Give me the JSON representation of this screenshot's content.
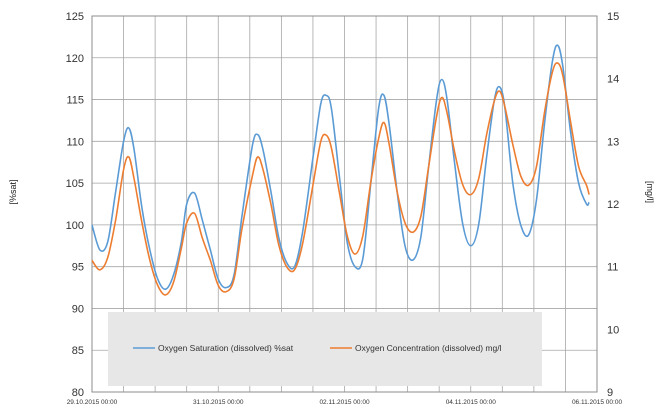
{
  "chart_data": {
    "type": "line",
    "ylabel_left": "[%sat]",
    "ylabel_right": "[mg/l]",
    "ylim_left": [
      80,
      125
    ],
    "ylim_right": [
      9,
      15
    ],
    "yticks_left": [
      "80",
      "85",
      "90",
      "95",
      "100",
      "105",
      "110",
      "115",
      "120",
      "125"
    ],
    "yticks_right": [
      "9",
      "10",
      "11",
      "12",
      "13",
      "14",
      "15"
    ],
    "x_range_hours": [
      0,
      192
    ],
    "x_ticks": [
      {
        "hours": 0,
        "label": "29.10.2015 00:00"
      },
      {
        "hours": 48,
        "label": "31.10.2015 00:00"
      },
      {
        "hours": 96,
        "label": "02.11.2015 00:00"
      },
      {
        "hours": 144,
        "label": "04.11.2015 00:00"
      },
      {
        "hours": 192,
        "label": "06.11.2015 00:00"
      }
    ],
    "grid": true,
    "legend_position": "bottom-center",
    "series": [
      {
        "name": "Oxygen Saturation (dissolved) %sat",
        "axis": "left",
        "color": "#5b9bd5",
        "points": [
          [
            0,
            100
          ],
          [
            3,
            97
          ],
          [
            6,
            98
          ],
          [
            9,
            104
          ],
          [
            12,
            110
          ],
          [
            14,
            111.6
          ],
          [
            16,
            109
          ],
          [
            19,
            102
          ],
          [
            22,
            97
          ],
          [
            25,
            93.5
          ],
          [
            28,
            92.3
          ],
          [
            31,
            94
          ],
          [
            34,
            98
          ],
          [
            36,
            102.5
          ],
          [
            39,
            103.8
          ],
          [
            42,
            100.5
          ],
          [
            45,
            97
          ],
          [
            48,
            93.5
          ],
          [
            51,
            92.5
          ],
          [
            54,
            94
          ],
          [
            57,
            101
          ],
          [
            61,
            109.5
          ],
          [
            63,
            110.8
          ],
          [
            65,
            109
          ],
          [
            68,
            104
          ],
          [
            71,
            98.5
          ],
          [
            74,
            95.5
          ],
          [
            77,
            95
          ],
          [
            80,
            99
          ],
          [
            84,
            108
          ],
          [
            87,
            114.5
          ],
          [
            89,
            115.5
          ],
          [
            91,
            114
          ],
          [
            94,
            106
          ],
          [
            97,
            98
          ],
          [
            100,
            95
          ],
          [
            103,
            96
          ],
          [
            106,
            105
          ],
          [
            109,
            114
          ],
          [
            111,
            115.5
          ],
          [
            113,
            112
          ],
          [
            116,
            104
          ],
          [
            119,
            97.5
          ],
          [
            122,
            95.8
          ],
          [
            125,
            98.5
          ],
          [
            128,
            107
          ],
          [
            131,
            115
          ],
          [
            133,
            117.4
          ],
          [
            135,
            115
          ],
          [
            138,
            107
          ],
          [
            141,
            100
          ],
          [
            144,
            97.5
          ],
          [
            147,
            100
          ],
          [
            150,
            108
          ],
          [
            153,
            115
          ],
          [
            155,
            116.5
          ],
          [
            157,
            114
          ],
          [
            160,
            105
          ],
          [
            163,
            100
          ],
          [
            166,
            98.8
          ],
          [
            169,
            103
          ],
          [
            172,
            112
          ],
          [
            175,
            119.5
          ],
          [
            177,
            121.5
          ],
          [
            179,
            119
          ],
          [
            182,
            111
          ],
          [
            185,
            105
          ],
          [
            188,
            102.5
          ],
          [
            189,
            102.7
          ]
        ]
      },
      {
        "name": "Oxygen Concentration (dissolved) mg/l",
        "axis": "right",
        "color": "#ed7d31",
        "points": [
          [
            0,
            11.1
          ],
          [
            3,
            10.95
          ],
          [
            6,
            11.15
          ],
          [
            9,
            11.75
          ],
          [
            12,
            12.55
          ],
          [
            14,
            12.75
          ],
          [
            16,
            12.4
          ],
          [
            19,
            11.7
          ],
          [
            22,
            11.1
          ],
          [
            25,
            10.7
          ],
          [
            28,
            10.55
          ],
          [
            31,
            10.75
          ],
          [
            34,
            11.3
          ],
          [
            36,
            11.7
          ],
          [
            39,
            11.85
          ],
          [
            42,
            11.45
          ],
          [
            45,
            11.1
          ],
          [
            48,
            10.7
          ],
          [
            51,
            10.6
          ],
          [
            54,
            10.8
          ],
          [
            57,
            11.6
          ],
          [
            61,
            12.45
          ],
          [
            63,
            12.75
          ],
          [
            65,
            12.55
          ],
          [
            68,
            12.0
          ],
          [
            71,
            11.35
          ],
          [
            74,
            11.0
          ],
          [
            77,
            10.95
          ],
          [
            80,
            11.35
          ],
          [
            84,
            12.3
          ],
          [
            87,
            13.0
          ],
          [
            89,
            13.1
          ],
          [
            91,
            12.9
          ],
          [
            94,
            12.2
          ],
          [
            97,
            11.5
          ],
          [
            100,
            11.2
          ],
          [
            103,
            11.5
          ],
          [
            106,
            12.35
          ],
          [
            109,
            13.05
          ],
          [
            111,
            13.3
          ],
          [
            113,
            12.95
          ],
          [
            116,
            12.2
          ],
          [
            119,
            11.7
          ],
          [
            122,
            11.55
          ],
          [
            125,
            11.8
          ],
          [
            128,
            12.6
          ],
          [
            131,
            13.4
          ],
          [
            133,
            13.7
          ],
          [
            135,
            13.45
          ],
          [
            138,
            12.8
          ],
          [
            141,
            12.3
          ],
          [
            144,
            12.15
          ],
          [
            147,
            12.4
          ],
          [
            150,
            13.1
          ],
          [
            153,
            13.65
          ],
          [
            155,
            13.8
          ],
          [
            157,
            13.55
          ],
          [
            160,
            12.95
          ],
          [
            163,
            12.45
          ],
          [
            166,
            12.3
          ],
          [
            169,
            12.6
          ],
          [
            172,
            13.45
          ],
          [
            175,
            14.1
          ],
          [
            177,
            14.25
          ],
          [
            179,
            14.05
          ],
          [
            182,
            13.3
          ],
          [
            185,
            12.6
          ],
          [
            188,
            12.3
          ],
          [
            189,
            12.15
          ]
        ]
      }
    ]
  }
}
